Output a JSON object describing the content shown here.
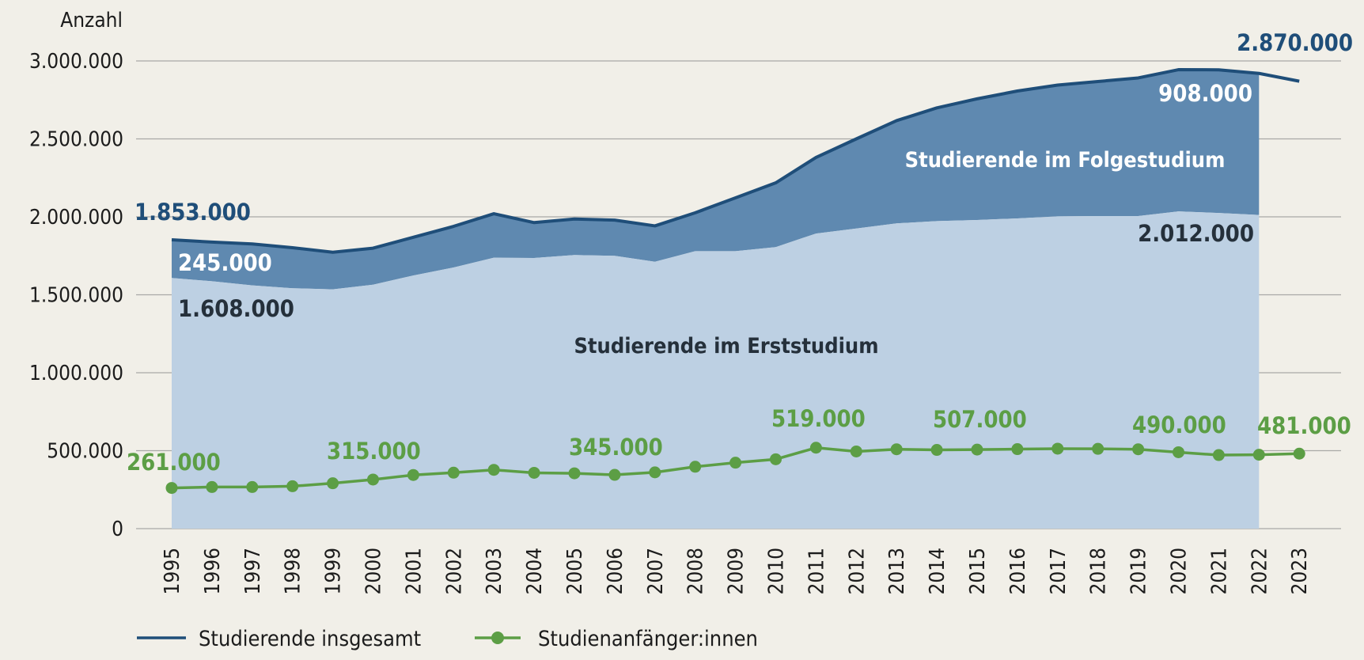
{
  "chart_data": {
    "type": "area",
    "ylabel": "Anzahl",
    "ylim": [
      0,
      3000000
    ],
    "yticks": [
      0,
      500000,
      1000000,
      1500000,
      2000000,
      2500000,
      3000000
    ],
    "ytick_labels": [
      "0",
      "500.000",
      "1.000.000",
      "1.500.000",
      "2.000.000",
      "2.500.000",
      "3.000.000"
    ],
    "grid": true,
    "x": [
      "1995",
      "1996",
      "1997",
      "1998",
      "1999",
      "2000",
      "2001",
      "2002",
      "2003",
      "2004",
      "2005",
      "2006",
      "2007",
      "2008",
      "2009",
      "2010",
      "2011",
      "2012",
      "2013",
      "2014",
      "2015",
      "2016",
      "2017",
      "2018",
      "2019",
      "2020",
      "2021",
      "2022",
      "2023"
    ],
    "series": [
      {
        "name": "Studierende insgesamt",
        "kind": "line",
        "color": "#1f4e79",
        "values": [
          1853000,
          1838000,
          1826000,
          1802000,
          1773000,
          1799000,
          1869000,
          1939000,
          2020000,
          1963000,
          1986000,
          1979000,
          1942000,
          2026000,
          2122000,
          2218000,
          2381000,
          2500000,
          2617000,
          2699000,
          2757000,
          2807000,
          2845000,
          2868000,
          2891000,
          2944000,
          2943000,
          2920000,
          2870000
        ]
      },
      {
        "name": "Studierende im Erststudium",
        "kind": "area",
        "color": "#bdd0e3",
        "values": [
          1608000,
          1587000,
          1560000,
          1542000,
          1535000,
          1565000,
          1624000,
          1675000,
          1738000,
          1736000,
          1755000,
          1750000,
          1712000,
          1780000,
          1780000,
          1806000,
          1893000,
          1925000,
          1958000,
          1973000,
          1980000,
          1990000,
          2003000,
          2005000,
          2005000,
          2035000,
          2025000,
          2012000,
          null
        ]
      },
      {
        "name": "Studierende im Folgestudium",
        "kind": "area",
        "color": "#5f89b0",
        "values": [
          245000,
          251000,
          266000,
          260000,
          238000,
          234000,
          245000,
          264000,
          282000,
          227000,
          231000,
          229000,
          230000,
          246000,
          342000,
          412000,
          488000,
          575000,
          659000,
          726000,
          777000,
          817000,
          842000,
          863000,
          886000,
          909000,
          918000,
          908000,
          null
        ]
      },
      {
        "name": "Studienanfänger:innen",
        "kind": "line",
        "color": "#5c9e45",
        "values": [
          261000,
          267000,
          267000,
          272000,
          291000,
          315000,
          344000,
          359000,
          377000,
          358000,
          355000,
          345000,
          361000,
          397000,
          423000,
          445000,
          519000,
          495000,
          509000,
          505000,
          507000,
          510000,
          513000,
          512000,
          509000,
          490000,
          472000,
          474000,
          481000
        ]
      }
    ],
    "annotations": [
      {
        "text": "1.853.000",
        "color": "#1f4e79"
      },
      {
        "text": "245.000",
        "color": "#ffffff"
      },
      {
        "text": "1.608.000",
        "color": "#25303b"
      },
      {
        "text": "2.870.000",
        "color": "#1f4e79"
      },
      {
        "text": "908.000",
        "color": "#ffffff"
      },
      {
        "text": "2.012.000",
        "color": "#25303b"
      },
      {
        "text": "261.000",
        "color": "#5c9e45"
      },
      {
        "text": "315.000",
        "color": "#5c9e45"
      },
      {
        "text": "345.000",
        "color": "#5c9e45"
      },
      {
        "text": "519.000",
        "color": "#5c9e45"
      },
      {
        "text": "507.000",
        "color": "#5c9e45"
      },
      {
        "text": "490.000",
        "color": "#5c9e45"
      },
      {
        "text": "481.000",
        "color": "#5c9e45"
      }
    ],
    "region_labels": [
      {
        "text": "Studierende im Folgestudium",
        "color": "#ffffff"
      },
      {
        "text": "Studierende im Erststudium",
        "color": "#25303b"
      }
    ],
    "legend": [
      {
        "text": "Studierende insgesamt",
        "marker": "line",
        "color": "#1f4e79"
      },
      {
        "text": "Studienanfänger:innen",
        "marker": "line-dot",
        "color": "#5c9e45"
      }
    ],
    "legend_position": "bottom-left"
  }
}
